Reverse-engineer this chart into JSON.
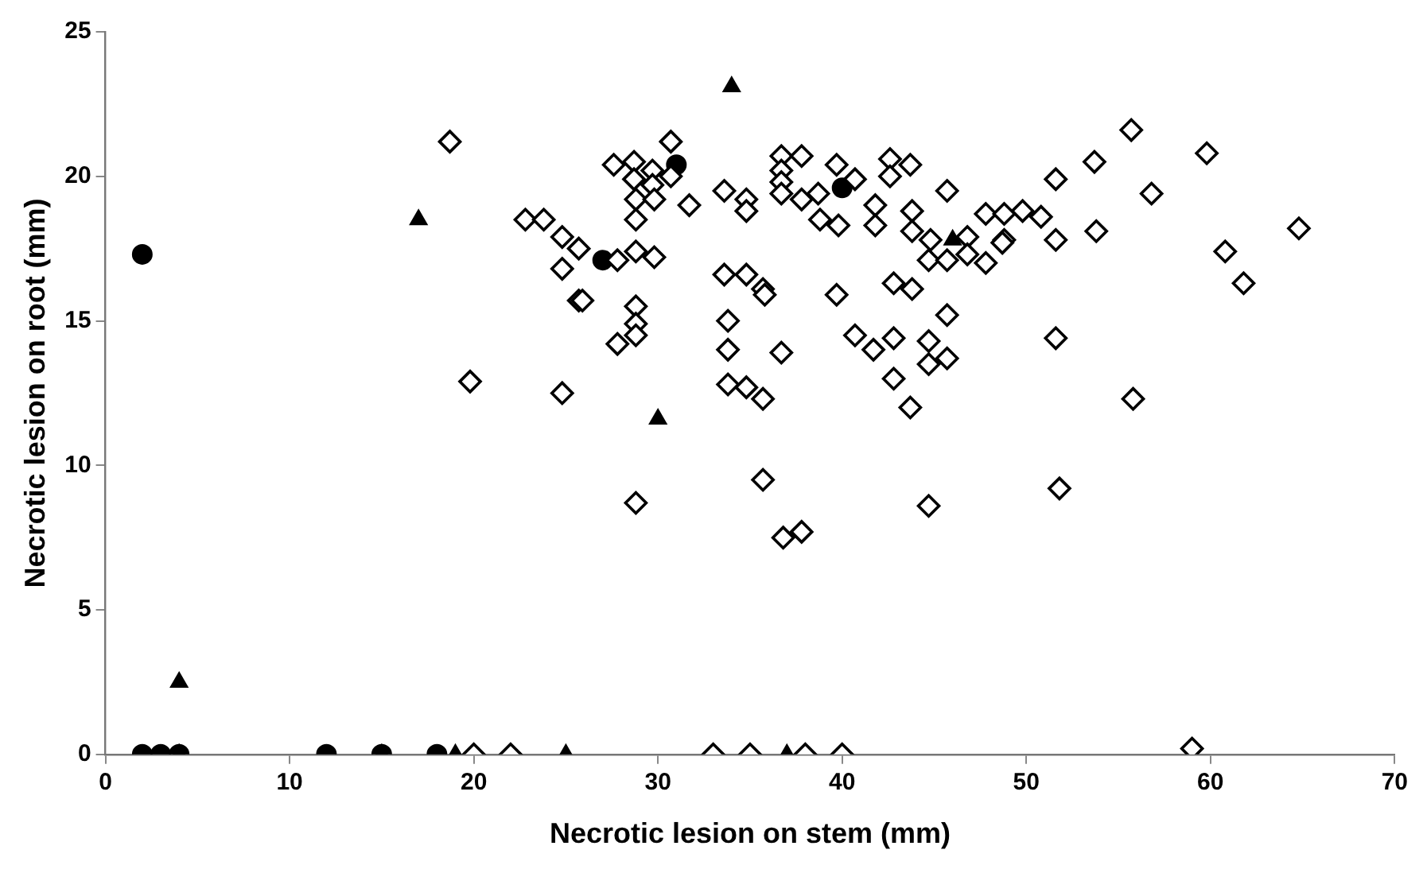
{
  "chart_data": {
    "type": "scatter",
    "xlabel": "Necrotic lesion on stem (mm)",
    "ylabel": "Necrotic lesion on root (mm)",
    "xlim": [
      0,
      70
    ],
    "xticks": [
      0,
      10,
      20,
      30,
      40,
      50,
      60,
      70
    ],
    "ylim": [
      0,
      25
    ],
    "yticks": [
      0,
      5,
      10,
      15,
      20,
      25
    ],
    "grid": false,
    "legend": false,
    "series": [
      {
        "color": "#000000",
        "marker": "diamond",
        "x": [
          20,
          22,
          33,
          35,
          38,
          40,
          59,
          18.7,
          22.8,
          23.8,
          24.8,
          25.7,
          24.8,
          25.7,
          19.8,
          24.8,
          27.6,
          28.7,
          30.7,
          28.7,
          29.7,
          29.7,
          30.7,
          28.8,
          29.8,
          28.8,
          31.7,
          33.6,
          34.8,
          34.8,
          36.7,
          37.8,
          36.7,
          36.7,
          36.7,
          37.8,
          38.7,
          39.7,
          40.7,
          38.8,
          39.8,
          41.8,
          41.8,
          42.6,
          43.7,
          42.6,
          43.8,
          43.8,
          45.7,
          44.8,
          44.7,
          46.8,
          46.8,
          47.8,
          47.8,
          48.8,
          49.8,
          50.8,
          51.6,
          48.8,
          51.6,
          27.8,
          28.8,
          29.8,
          25.9,
          28.8,
          28.8,
          27.8,
          28.8,
          33.6,
          34.8,
          35.7,
          35.8,
          33.8,
          33.8,
          36.7,
          33.8,
          34.8,
          35.7,
          39.7,
          42.8,
          43.8,
          45.7,
          40.7,
          41.7,
          42.8,
          44.7,
          44.7,
          45.7,
          42.8,
          43.7,
          51.6,
          55.7,
          59.8,
          53.7,
          56.8,
          53.8,
          64.8,
          60.8,
          61.8,
          55.8,
          51.8,
          48.7,
          45.7,
          35.7,
          28.8,
          36.8,
          37.8,
          44.7
        ],
        "values": [
          0,
          0,
          0,
          0,
          0,
          0,
          0.2,
          21.2,
          18.5,
          18.5,
          17.9,
          17.5,
          16.8,
          15.7,
          12.9,
          12.5,
          20.4,
          20.5,
          21.2,
          19.9,
          20.2,
          19.7,
          20,
          19.2,
          19.2,
          18.5,
          19,
          19.5,
          19.2,
          18.8,
          20.7,
          20.7,
          20.2,
          19.8,
          19.4,
          19.2,
          19.4,
          20.4,
          19.9,
          18.5,
          18.3,
          19,
          18.3,
          20.6,
          20.4,
          20,
          18.8,
          18.1,
          19.5,
          17.8,
          17.1,
          17.9,
          17.3,
          17,
          18.7,
          18.7,
          18.8,
          18.6,
          19.9,
          17.8,
          17.8,
          17.1,
          17.4,
          17.2,
          15.7,
          15.5,
          14.9,
          14.2,
          14.5,
          16.6,
          16.6,
          16.1,
          15.9,
          15,
          14,
          13.9,
          12.8,
          12.7,
          12.3,
          15.9,
          16.3,
          16.1,
          15.2,
          14.5,
          14,
          14.4,
          14.3,
          13.5,
          13.7,
          13,
          12,
          14.4,
          21.6,
          20.8,
          20.5,
          19.4,
          18.1,
          18.2,
          17.4,
          16.3,
          12.3,
          9.2,
          17.7,
          17.1,
          9.5,
          8.7,
          7.5,
          7.7,
          8.6
        ]
      },
      {
        "color": "#000000",
        "marker": "circle",
        "x": [
          2,
          2,
          3,
          4,
          12,
          15,
          18,
          27,
          31,
          40
        ],
        "values": [
          17.3,
          0,
          0,
          0,
          0,
          0,
          0,
          17.1,
          20.4,
          19.6
        ]
      },
      {
        "color": "#000000",
        "marker": "triangle",
        "x": [
          4,
          4,
          15,
          17,
          19,
          25,
          30,
          34,
          37,
          46
        ],
        "values": [
          2.5,
          0,
          0,
          18.5,
          0,
          0,
          11.6,
          23.1,
          0,
          17.8
        ]
      }
    ]
  }
}
